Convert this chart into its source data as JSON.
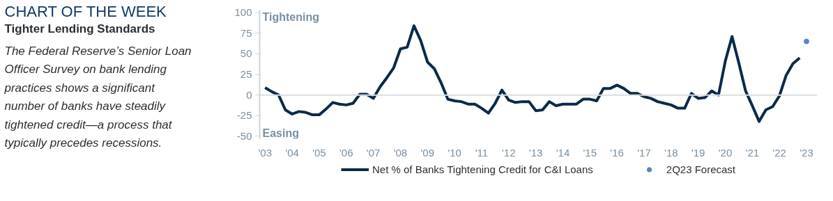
{
  "chart_data": {
    "type": "line",
    "title": "CHART OF THE WEEK",
    "subtitle": "Tighter Lending Standards",
    "annotations": [
      "The Federal Reserve’s Senior Loan Officer Survey on bank lending practices  shows a significant number of banks have steadily tightened credit—a process that typically precedes recessions.",
      "Tightening",
      "Easing"
    ],
    "x": [
      2003.0,
      2003.25,
      2003.5,
      2003.75,
      2004.0,
      2004.25,
      2004.5,
      2004.75,
      2005.0,
      2005.25,
      2005.5,
      2005.75,
      2006.0,
      2006.25,
      2006.5,
      2006.75,
      2007.0,
      2007.25,
      2007.5,
      2007.75,
      2008.0,
      2008.25,
      2008.5,
      2008.75,
      2009.0,
      2009.25,
      2009.5,
      2009.75,
      2010.0,
      2010.25,
      2010.5,
      2010.75,
      2011.0,
      2011.25,
      2011.5,
      2011.75,
      2012.0,
      2012.25,
      2012.5,
      2012.75,
      2013.0,
      2013.25,
      2013.5,
      2013.75,
      2014.0,
      2014.25,
      2014.5,
      2014.75,
      2015.0,
      2015.25,
      2015.5,
      2015.75,
      2016.0,
      2016.25,
      2016.5,
      2016.75,
      2017.0,
      2017.25,
      2017.5,
      2017.75,
      2018.0,
      2018.25,
      2018.5,
      2018.75,
      2019.0,
      2019.25,
      2019.5,
      2019.75,
      2020.0,
      2020.25,
      2020.5,
      2020.75,
      2021.0,
      2021.25,
      2021.5,
      2021.75,
      2022.0,
      2022.25,
      2022.5,
      2022.75
    ],
    "series": [
      {
        "name": "Net % of Banks Tightening Credit for C&I Loans",
        "color": "#0b2a4a",
        "values": [
          9,
          4,
          0,
          -18,
          -23,
          -20,
          -21,
          -24,
          -24,
          -17,
          -9,
          -11,
          -12,
          -10,
          1,
          1,
          -4,
          10,
          21,
          33,
          56,
          58,
          84,
          66,
          40,
          32,
          15,
          -5,
          -7,
          -8,
          -11,
          -11,
          -16,
          -22,
          -10,
          6,
          -6,
          -9,
          -8,
          -8,
          -19,
          -18,
          -8,
          -13,
          -11,
          -11,
          -11,
          -5,
          -5,
          -7,
          8,
          8,
          12,
          8,
          2,
          2,
          -2,
          -4,
          -8,
          -10,
          -12,
          -16,
          -16,
          2,
          -4,
          -3,
          5,
          0,
          41,
          71,
          39,
          5,
          -13,
          -32,
          -18,
          -14,
          -1,
          24,
          38,
          45
        ]
      },
      {
        "name": "2Q23 Forecast",
        "type": "scatter",
        "marker": "circle",
        "color": "#5b87b5",
        "x": [
          2023.0
        ],
        "values": [
          65
        ]
      }
    ],
    "xlim": [
      2002.8,
      2023.4
    ],
    "ylim": [
      -53,
      103
    ],
    "xticks": [
      {
        "value": 2003,
        "label": "'03"
      },
      {
        "value": 2004,
        "label": "'04"
      },
      {
        "value": 2005,
        "label": "'05"
      },
      {
        "value": 2006,
        "label": "'06"
      },
      {
        "value": 2007,
        "label": "'07"
      },
      {
        "value": 2008,
        "label": "'08"
      },
      {
        "value": 2009,
        "label": "'09"
      },
      {
        "value": 2010,
        "label": "'10"
      },
      {
        "value": 2011,
        "label": "'11"
      },
      {
        "value": 2012,
        "label": "'12"
      },
      {
        "value": 2013,
        "label": "'13"
      },
      {
        "value": 2014,
        "label": "'14"
      },
      {
        "value": 2015,
        "label": "'15"
      },
      {
        "value": 2016,
        "label": "'16"
      },
      {
        "value": 2017,
        "label": "'17"
      },
      {
        "value": 2018,
        "label": "'18"
      },
      {
        "value": 2019,
        "label": "'19"
      },
      {
        "value": 2020,
        "label": "'20"
      },
      {
        "value": 2021,
        "label": "'21"
      },
      {
        "value": 2022,
        "label": "'22"
      },
      {
        "value": 2023,
        "label": "'23"
      }
    ],
    "yticks": [
      -50,
      -25,
      0,
      25,
      50,
      75,
      100
    ],
    "ref_lines": [
      {
        "axis": "y",
        "value": 0,
        "color": "#d9dde3"
      }
    ],
    "grid": false,
    "legend": "bottom",
    "line_style": "solid"
  }
}
